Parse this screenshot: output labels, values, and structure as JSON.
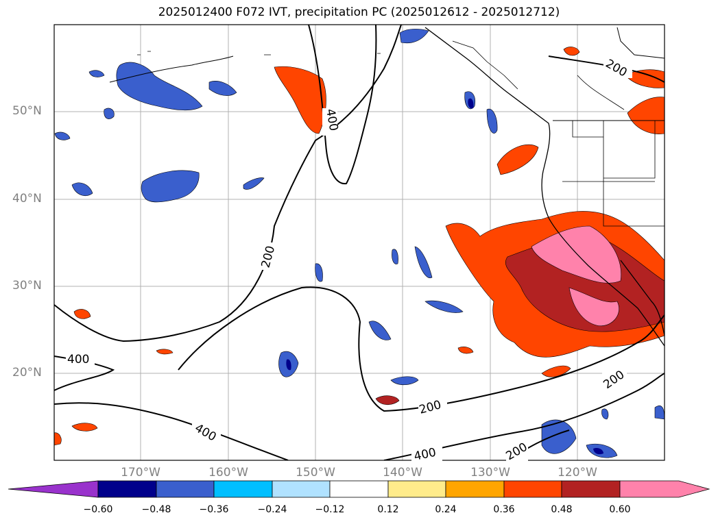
{
  "title": "2025012400 F072 IVT, precipitation PC (2025012612 - 2025012712)",
  "lat_labels": [
    "50°N",
    "40°N",
    "30°N",
    "20°N"
  ],
  "lon_labels": [
    "170°W",
    "160°W",
    "150°W",
    "140°W",
    "130°W",
    "120°W"
  ],
  "contour_labels": [
    "400",
    "200",
    "400",
    "200",
    "400",
    "200",
    "400",
    "200",
    "200",
    "400"
  ],
  "colorbar": {
    "ticks": [
      "−0.60",
      "−0.48",
      "−0.36",
      "−0.24",
      "−0.12",
      "0.12",
      "0.24",
      "0.36",
      "0.48",
      "0.60"
    ],
    "colors": [
      "#9932cc",
      "#00008b",
      "#3a5fcd",
      "#00bfff",
      "#b0e2ff",
      "#ffffff",
      "#ffec8b",
      "#ffa500",
      "#ff4500",
      "#b22222",
      "#ff82ab"
    ]
  }
}
